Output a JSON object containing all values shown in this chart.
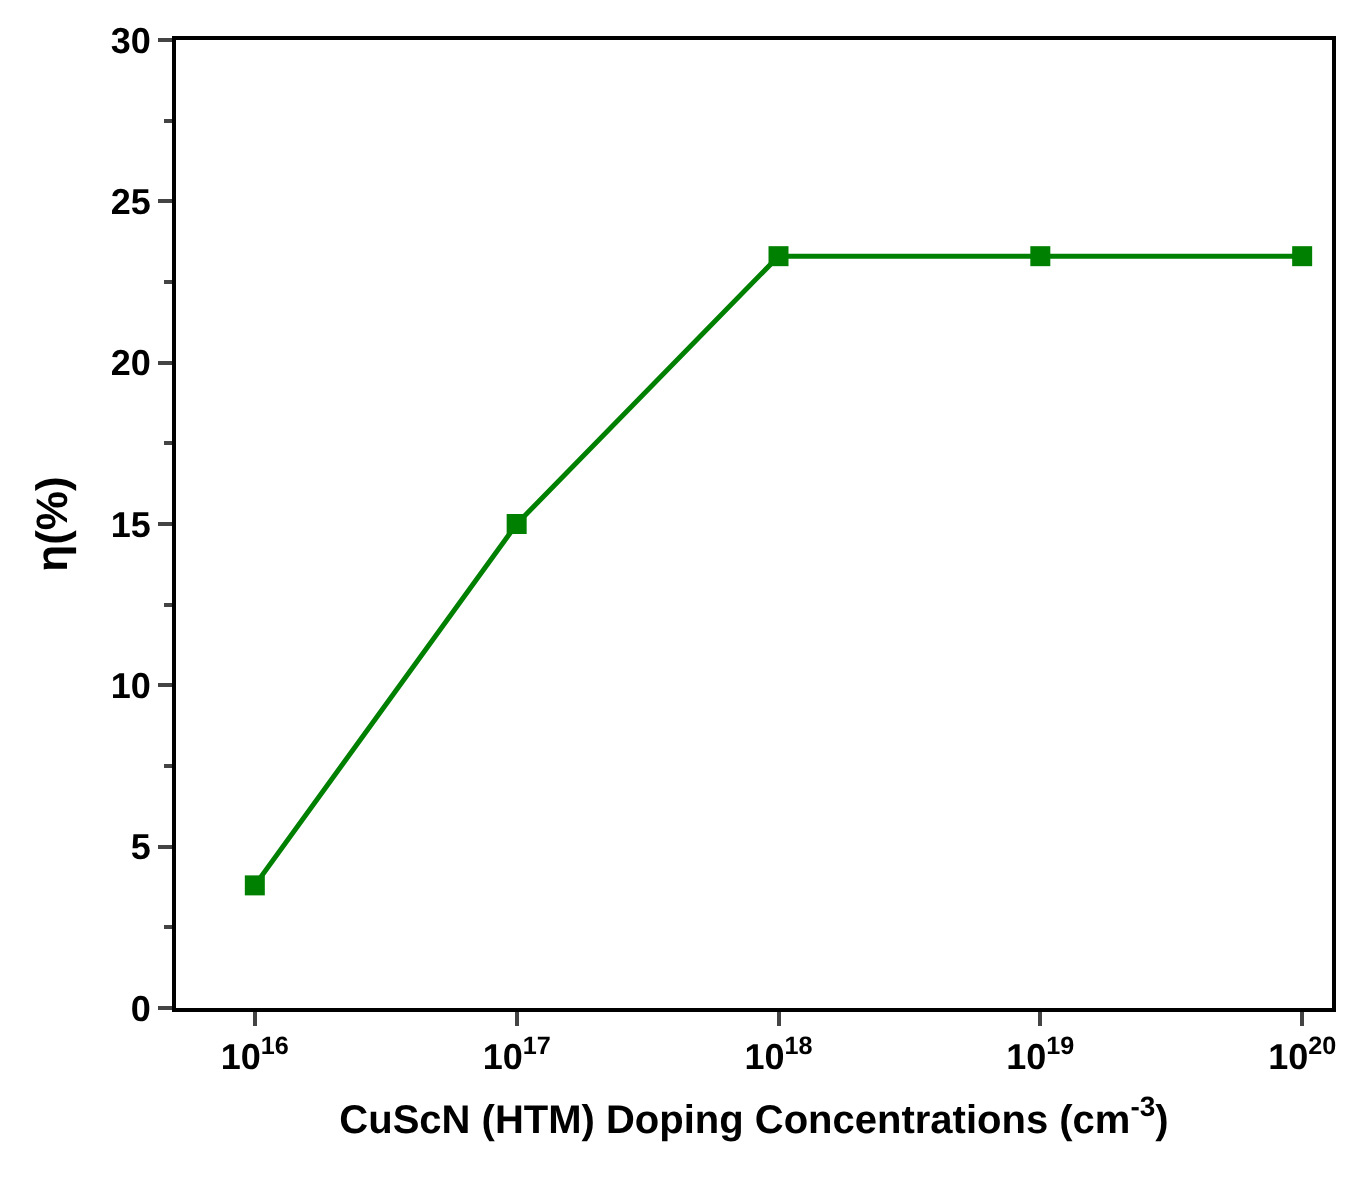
{
  "chart_data": {
    "type": "line",
    "xlabel": "CuScN (HTM) Doping Concentrations (cm$^{-3}$)",
    "ylabel": "η(%)",
    "x": [
      1e+16,
      1e+17,
      1e+18,
      1e+19,
      1e+20
    ],
    "series": [
      {
        "color": "#008000",
        "values": [
          3.8,
          15,
          23.3,
          23.3,
          23.3
        ]
      }
    ],
    "log": "x",
    "xlim": [
      5000000000000000.0,
      1.3e+20
    ],
    "xticks": [
      {
        "value": 1e+16,
        "label": "10$^{16}$"
      },
      {
        "value": 1e+17,
        "label": "10$^{17}$"
      },
      {
        "value": 1e+18,
        "label": "10$^{18}$"
      },
      {
        "value": 1e+19,
        "label": "10$^{19}$"
      },
      {
        "value": 1e+20,
        "label": "10$^{20}$"
      }
    ],
    "ylim": [
      0,
      30
    ],
    "yticks": [
      0,
      5,
      10,
      15,
      20,
      25,
      30
    ],
    "marker": "square",
    "line_style": "solid"
  }
}
